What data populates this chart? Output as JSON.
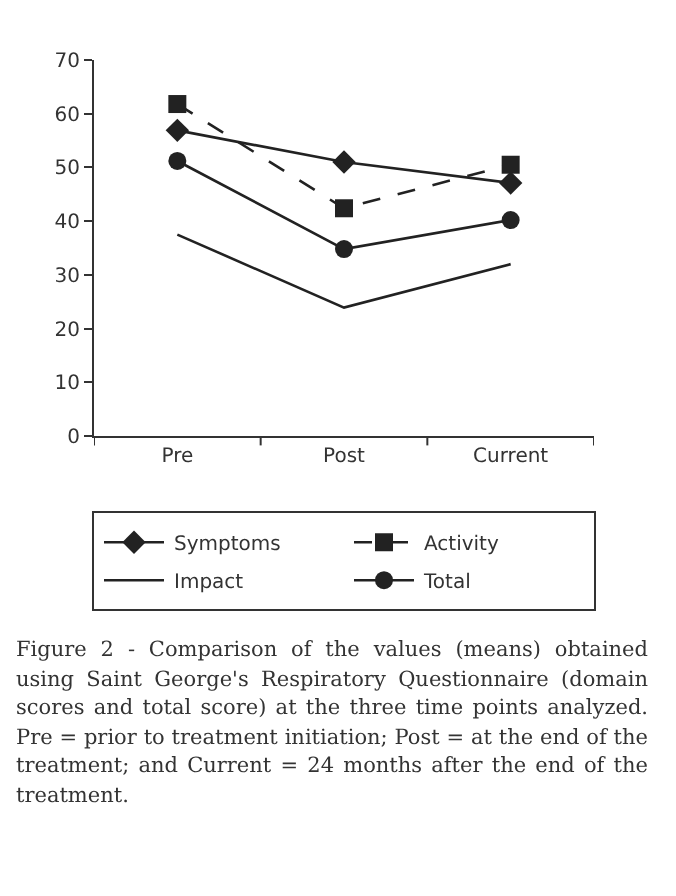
{
  "chart_data": {
    "type": "line",
    "categories": [
      "Pre",
      "Post",
      "Current"
    ],
    "series": [
      {
        "name": "Symptoms",
        "color": "#222222",
        "marker": "diamond",
        "line_style": "solid",
        "values": [
          56.9,
          51.0,
          47.1
        ]
      },
      {
        "name": "Activity",
        "color": "#222222",
        "marker": "square",
        "line_style": "dashed",
        "values": [
          61.8,
          42.4,
          50.5
        ]
      },
      {
        "name": "Impact",
        "color": "#222222",
        "marker": "none",
        "line_style": "solid",
        "values": [
          37.5,
          23.9,
          32.0
        ]
      },
      {
        "name": "Total",
        "color": "#222222",
        "marker": "circle",
        "line_style": "solid",
        "values": [
          51.2,
          34.8,
          40.2
        ]
      }
    ],
    "ylim": [
      0,
      70
    ],
    "yticks": [
      0,
      10,
      20,
      30,
      40,
      50,
      60,
      70
    ],
    "grid": false,
    "legend": "bottom",
    "annotations": [
      "Figure 2 - Comparison of the values (means) obtained using Saint George's Respiratory Questionnaire (domain scores and total score) at the three time points analyzed. Pre = prior to treatment initiation; Post = at the end of the treatment; and Current = 24 months after the end of the treatment."
    ]
  }
}
